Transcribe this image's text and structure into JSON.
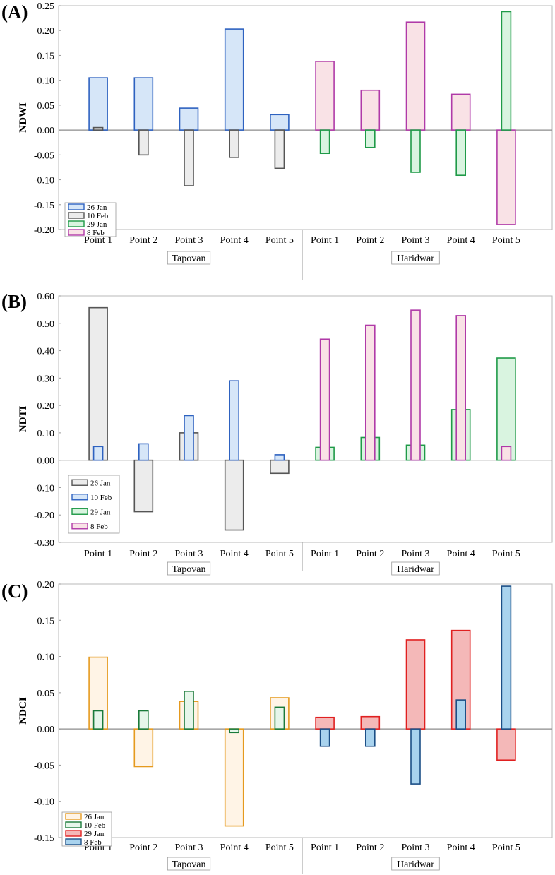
{
  "chart_data": [
    {
      "panel_label": "(A)",
      "type": "bar",
      "ylabel": "NDWI",
      "ylim": [
        -0.2,
        0.25
      ],
      "yticks": [
        -0.2,
        -0.15,
        -0.1,
        -0.05,
        0.0,
        0.05,
        0.1,
        0.15,
        0.2,
        0.25
      ],
      "tick_decimals": 2,
      "categories": [
        "Point 1",
        "Point 2",
        "Point 3",
        "Point 4",
        "Point 5",
        "Point 1",
        "Point 2",
        "Point 3",
        "Point 4",
        "Point 5"
      ],
      "groups": [
        {
          "name": "Tapovan",
          "start": 0,
          "end": 4
        },
        {
          "name": "Haridwar",
          "start": 5,
          "end": 9
        }
      ],
      "legend": [
        {
          "name": "26 Jan",
          "fill": "#d6e6f8",
          "stroke": "#2e62c0"
        },
        {
          "name": "10 Feb",
          "fill": "#ececec",
          "stroke": "#555555"
        },
        {
          "name": "29 Jan",
          "fill": "#d9f4e0",
          "stroke": "#1f9a48"
        },
        {
          "name": "8 Feb",
          "fill": "#f9e2e6",
          "stroke": "#b03aa8"
        }
      ],
      "legend_position": "bottom-left",
      "bars": [
        {
          "category": 0,
          "series": "26 Jan",
          "value": 0.105,
          "layer": "wide"
        },
        {
          "category": 0,
          "series": "10 Feb",
          "value": 0.005,
          "layer": "narrow"
        },
        {
          "category": 1,
          "series": "26 Jan",
          "value": 0.105,
          "layer": "wide"
        },
        {
          "category": 1,
          "series": "10 Feb",
          "value": -0.05,
          "layer": "narrow"
        },
        {
          "category": 2,
          "series": "26 Jan",
          "value": 0.044,
          "layer": "wide"
        },
        {
          "category": 2,
          "series": "10 Feb",
          "value": -0.112,
          "layer": "narrow"
        },
        {
          "category": 3,
          "series": "26 Jan",
          "value": 0.203,
          "layer": "wide"
        },
        {
          "category": 3,
          "series": "10 Feb",
          "value": -0.055,
          "layer": "narrow"
        },
        {
          "category": 4,
          "series": "26 Jan",
          "value": 0.031,
          "layer": "wide"
        },
        {
          "category": 4,
          "series": "10 Feb",
          "value": -0.077,
          "layer": "narrow"
        },
        {
          "category": 5,
          "series": "8 Feb",
          "value": 0.138,
          "layer": "wide"
        },
        {
          "category": 5,
          "series": "29 Jan",
          "value": -0.047,
          "layer": "narrow"
        },
        {
          "category": 6,
          "series": "8 Feb",
          "value": 0.08,
          "layer": "wide"
        },
        {
          "category": 6,
          "series": "29 Jan",
          "value": -0.035,
          "layer": "narrow"
        },
        {
          "category": 7,
          "series": "8 Feb",
          "value": 0.217,
          "layer": "wide"
        },
        {
          "category": 7,
          "series": "29 Jan",
          "value": -0.085,
          "layer": "narrow"
        },
        {
          "category": 8,
          "series": "8 Feb",
          "value": 0.072,
          "layer": "wide"
        },
        {
          "category": 8,
          "series": "29 Jan",
          "value": -0.091,
          "layer": "narrow"
        },
        {
          "category": 9,
          "series": "29 Jan",
          "value": 0.238,
          "layer": "narrow"
        },
        {
          "category": 9,
          "series": "8 Feb",
          "value": -0.19,
          "layer": "wide"
        }
      ]
    },
    {
      "panel_label": "(B)",
      "type": "bar",
      "ylabel": "NDTI",
      "ylim": [
        -0.3,
        0.6
      ],
      "yticks": [
        -0.3,
        -0.2,
        -0.1,
        0.0,
        0.1,
        0.2,
        0.3,
        0.4,
        0.5,
        0.6
      ],
      "tick_decimals": 2,
      "categories": [
        "Point 1",
        "Point 2",
        "Point 3",
        "Point 4",
        "Point 5",
        "Point 1",
        "Point 2",
        "Point 3",
        "Point 4",
        "Point 5"
      ],
      "groups": [
        {
          "name": "Tapovan",
          "start": 0,
          "end": 4
        },
        {
          "name": "Haridwar",
          "start": 5,
          "end": 9
        }
      ],
      "legend": [
        {
          "name": "26 Jan",
          "fill": "#ececec",
          "stroke": "#555555"
        },
        {
          "name": "10 Feb",
          "fill": "#d6e6f8",
          "stroke": "#2e62c0"
        },
        {
          "name": "29 Jan",
          "fill": "#d9f4e0",
          "stroke": "#1f9a48"
        },
        {
          "name": "8 Feb",
          "fill": "#f9e2e6",
          "stroke": "#b03aa8"
        }
      ],
      "legend_position": "bottom-left",
      "bars": [
        {
          "category": 0,
          "series": "26 Jan",
          "value": 0.557,
          "layer": "wide"
        },
        {
          "category": 0,
          "series": "10 Feb",
          "value": 0.05,
          "layer": "narrow"
        },
        {
          "category": 1,
          "series": "26 Jan",
          "value": -0.188,
          "layer": "wide"
        },
        {
          "category": 1,
          "series": "10 Feb",
          "value": 0.06,
          "layer": "narrow"
        },
        {
          "category": 2,
          "series": "26 Jan",
          "value": 0.1,
          "layer": "wide"
        },
        {
          "category": 2,
          "series": "10 Feb",
          "value": 0.163,
          "layer": "narrow"
        },
        {
          "category": 3,
          "series": "26 Jan",
          "value": -0.255,
          "layer": "wide"
        },
        {
          "category": 3,
          "series": "10 Feb",
          "value": 0.29,
          "layer": "narrow"
        },
        {
          "category": 4,
          "series": "26 Jan",
          "value": -0.048,
          "layer": "wide"
        },
        {
          "category": 4,
          "series": "10 Feb",
          "value": 0.02,
          "layer": "narrow"
        },
        {
          "category": 5,
          "series": "29 Jan",
          "value": 0.047,
          "layer": "wide"
        },
        {
          "category": 5,
          "series": "8 Feb",
          "value": 0.442,
          "layer": "narrow"
        },
        {
          "category": 6,
          "series": "29 Jan",
          "value": 0.083,
          "layer": "wide"
        },
        {
          "category": 6,
          "series": "8 Feb",
          "value": 0.493,
          "layer": "narrow"
        },
        {
          "category": 7,
          "series": "29 Jan",
          "value": 0.055,
          "layer": "wide"
        },
        {
          "category": 7,
          "series": "8 Feb",
          "value": 0.548,
          "layer": "narrow"
        },
        {
          "category": 8,
          "series": "29 Jan",
          "value": 0.185,
          "layer": "wide"
        },
        {
          "category": 8,
          "series": "8 Feb",
          "value": 0.528,
          "layer": "narrow"
        },
        {
          "category": 9,
          "series": "29 Jan",
          "value": 0.373,
          "layer": "wide"
        },
        {
          "category": 9,
          "series": "8 Feb",
          "value": 0.05,
          "layer": "narrow"
        }
      ]
    },
    {
      "panel_label": "(C)",
      "type": "bar",
      "ylabel": "NDCI",
      "ylim": [
        -0.15,
        0.2
      ],
      "yticks": [
        -0.15,
        -0.1,
        -0.05,
        0.0,
        0.05,
        0.1,
        0.15,
        0.2
      ],
      "tick_decimals": 2,
      "categories": [
        "Point 1",
        "Point 2",
        "Point 3",
        "Point 4",
        "Point 5",
        "Point 1",
        "Point 2",
        "Point 3",
        "Point 4",
        "Point 5"
      ],
      "groups": [
        {
          "name": "Tapovan",
          "start": 0,
          "end": 4
        },
        {
          "name": "Haridwar",
          "start": 5,
          "end": 9
        }
      ],
      "legend": [
        {
          "name": "26 Jan",
          "fill": "#fff4e6",
          "stroke": "#e59a1e"
        },
        {
          "name": "10 Feb",
          "fill": "#e6f6ea",
          "stroke": "#1a7a3a"
        },
        {
          "name": "29 Jan",
          "fill": "#f4b8b8",
          "stroke": "#e02020"
        },
        {
          "name": "8 Feb",
          "fill": "#a9d3ee",
          "stroke": "#1c4f86"
        }
      ],
      "legend_position": "bottom-left",
      "bars": [
        {
          "category": 0,
          "series": "26 Jan",
          "value": 0.099,
          "layer": "wide"
        },
        {
          "category": 0,
          "series": "10 Feb",
          "value": 0.025,
          "layer": "narrow"
        },
        {
          "category": 1,
          "series": "26 Jan",
          "value": -0.052,
          "layer": "wide"
        },
        {
          "category": 1,
          "series": "10 Feb",
          "value": 0.025,
          "layer": "narrow"
        },
        {
          "category": 2,
          "series": "26 Jan",
          "value": 0.038,
          "layer": "wide"
        },
        {
          "category": 2,
          "series": "10 Feb",
          "value": 0.052,
          "layer": "narrow"
        },
        {
          "category": 3,
          "series": "26 Jan",
          "value": -0.134,
          "layer": "wide"
        },
        {
          "category": 3,
          "series": "10 Feb",
          "value": -0.005,
          "layer": "narrow"
        },
        {
          "category": 4,
          "series": "26 Jan",
          "value": 0.043,
          "layer": "wide"
        },
        {
          "category": 4,
          "series": "10 Feb",
          "value": 0.03,
          "layer": "narrow"
        },
        {
          "category": 5,
          "series": "29 Jan",
          "value": 0.016,
          "layer": "wide"
        },
        {
          "category": 5,
          "series": "8 Feb",
          "value": -0.024,
          "layer": "narrow"
        },
        {
          "category": 6,
          "series": "29 Jan",
          "value": 0.017,
          "layer": "wide"
        },
        {
          "category": 6,
          "series": "8 Feb",
          "value": -0.024,
          "layer": "narrow"
        },
        {
          "category": 7,
          "series": "29 Jan",
          "value": 0.123,
          "layer": "wide"
        },
        {
          "category": 7,
          "series": "8 Feb",
          "value": -0.076,
          "layer": "narrow"
        },
        {
          "category": 8,
          "series": "29 Jan",
          "value": 0.136,
          "layer": "wide"
        },
        {
          "category": 8,
          "series": "8 Feb",
          "value": 0.04,
          "layer": "narrow"
        },
        {
          "category": 9,
          "series": "29 Jan",
          "value": -0.043,
          "layer": "wide"
        },
        {
          "category": 9,
          "series": "8 Feb",
          "value": 0.197,
          "layer": "narrow"
        }
      ]
    }
  ]
}
